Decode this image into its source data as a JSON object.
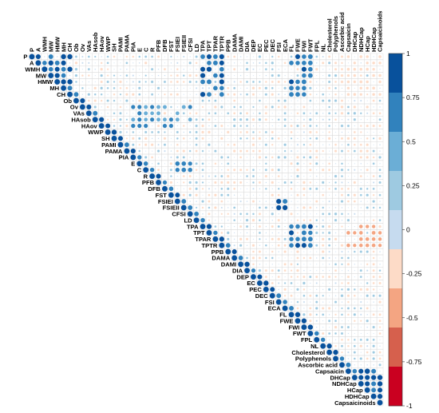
{
  "chart_data": {
    "type": "heatmap",
    "title": "",
    "layout": "upper-triangular correlation matrix",
    "variables": [
      "P",
      "A",
      "WMH",
      "MW",
      "HMW",
      "MH",
      "CH",
      "Ob",
      "Ov",
      "VAs",
      "HAsob",
      "HAov",
      "WWP",
      "SH",
      "PAMI",
      "PAMA",
      "PIA",
      "E",
      "C",
      "R",
      "PFB",
      "DFB",
      "FST",
      "FSIEI",
      "FSIEII",
      "CFSI",
      "LD",
      "TPA",
      "TPT",
      "TPAR",
      "TPTR",
      "PPB",
      "DAMA",
      "DAMI",
      "DIA",
      "DEP",
      "EC",
      "PEC",
      "DEC",
      "FSI",
      "ECA",
      "FL",
      "FWE",
      "FWI",
      "FWT",
      "FPL",
      "NL",
      "Cholesterol",
      "Polyphenols",
      "Ascorbic acid",
      "Capsaicin",
      "DHCap",
      "NDHCap",
      "HCap",
      "HDHCap",
      "Capsaicinoids"
    ],
    "colorbar": {
      "range": [
        -1,
        1
      ],
      "ticks": [
        "1",
        "0.75",
        "0.5",
        "0.25",
        "0",
        "-0.25",
        "-0.5",
        "-0.75",
        "-1"
      ],
      "bands": [
        "#08519c",
        "#3182bd",
        "#6baed6",
        "#9ecae1",
        "#c6dbef",
        "#fddbc7",
        "#f4a582",
        "#d6604d",
        "#ca0020"
      ]
    },
    "diagonal_value": 1.0,
    "notable_blocks": [
      {
        "rows": "P-CH",
        "cols": "P-CH",
        "r": 0.9
      },
      {
        "rows": "P-CH",
        "cols": "TPA-TPTR",
        "r": 0.85
      },
      {
        "rows": "P-CH",
        "cols": "FL-FWT",
        "r": 0.8
      },
      {
        "rows": "P-CH",
        "cols": "Capsaicin-Capsaicinoids",
        "r": -0.3
      },
      {
        "rows": "Ov-HAov",
        "cols": "PIA-CFSI",
        "r": 0.6
      },
      {
        "rows": "E-C",
        "cols": "FSIEI-CFSI",
        "r": 0.75
      },
      {
        "rows": "FSIEI-CFSI",
        "cols": "FSI-ECA",
        "r": 0.85
      },
      {
        "rows": "TPA-TPTR",
        "cols": "FL-FWT",
        "r": 0.8
      },
      {
        "rows": "TPA-TPTR",
        "cols": "Capsaicin-Capsaicinoids",
        "r": -0.5
      },
      {
        "rows": "Capsaicin-Capsaicinoids",
        "cols": "Capsaicin-Capsaicinoids",
        "r": 0.95
      }
    ]
  }
}
